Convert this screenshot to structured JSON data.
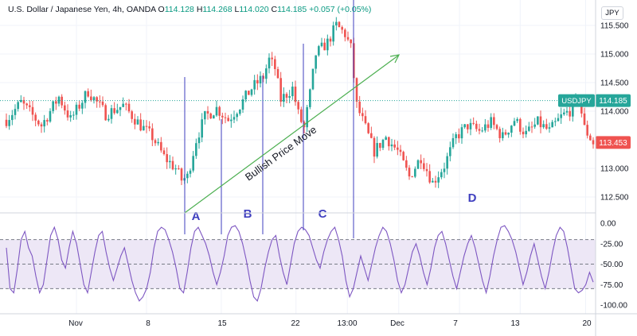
{
  "header": {
    "symbol": "U.S. Dollar / Japanese Yen, 4h, OANDA",
    "o_label": "O",
    "o_value": "114.128",
    "h_label": "H",
    "h_value": "114.268",
    "l_label": "L",
    "l_value": "114.020",
    "c_label": "C",
    "c_value": "114.185",
    "change": "+0.057 (+0.05%)"
  },
  "currency_button": "JPY",
  "colors": {
    "up": "#26a69a",
    "down": "#ef5350",
    "indicator": "#7e57c2",
    "band": "#ede7f6",
    "annotation": "#3f3fbf",
    "arrow": "#4caf50",
    "badge_green": "#26a69a",
    "badge_red": "#ef5350"
  },
  "chart_data": [
    {
      "type": "candlestick",
      "symbol": "USDJPY",
      "y_ticks": [
        "115.500",
        "115.000",
        "114.500",
        "114.000",
        "113.500",
        "113.000",
        "112.500"
      ],
      "ylim": [
        112.25,
        115.75
      ],
      "x_ticks": [
        "Nov",
        "8",
        "15",
        "22",
        "13:00",
        "Dec",
        "7",
        "13",
        "20"
      ],
      "last_price_label": "USDJPY",
      "last_price": "114.185",
      "alt_price": "113.453",
      "grid": true,
      "annotations": [
        {
          "text": "Bullish Price Move",
          "kind": "arrow"
        },
        {
          "text": "A"
        },
        {
          "text": "B"
        },
        {
          "text": "C"
        },
        {
          "text": "D"
        }
      ],
      "price_path": [
        [
          0,
          113.85
        ],
        [
          5,
          114.15
        ],
        [
          12,
          113.75
        ],
        [
          18,
          114.25
        ],
        [
          22,
          113.85
        ],
        [
          28,
          114.35
        ],
        [
          34,
          113.95
        ],
        [
          40,
          114.1
        ],
        [
          46,
          113.75
        ],
        [
          50,
          113.55
        ],
        [
          54,
          113.2
        ],
        [
          58,
          113.0
        ],
        [
          60,
          112.8
        ],
        [
          62,
          112.85
        ],
        [
          65,
          113.5
        ],
        [
          68,
          113.9
        ],
        [
          72,
          114.05
        ],
        [
          76,
          113.85
        ],
        [
          80,
          114.1
        ],
        [
          84,
          114.4
        ],
        [
          88,
          114.6
        ],
        [
          90,
          114.9
        ],
        [
          92,
          114.75
        ],
        [
          94,
          114.2
        ],
        [
          98,
          114.4
        ],
        [
          100,
          113.95
        ],
        [
          102,
          113.7
        ],
        [
          104,
          114.3
        ],
        [
          106,
          115.0
        ],
        [
          110,
          115.2
        ],
        [
          113,
          115.5
        ],
        [
          116,
          115.35
        ],
        [
          118,
          115.1
        ],
        [
          120,
          114.1
        ],
        [
          123,
          113.7
        ],
        [
          126,
          113.3
        ],
        [
          130,
          113.55
        ],
        [
          134,
          113.3
        ],
        [
          138,
          112.85
        ],
        [
          142,
          113.2
        ],
        [
          146,
          112.75
        ],
        [
          150,
          113.05
        ],
        [
          154,
          113.55
        ],
        [
          158,
          113.75
        ],
        [
          162,
          113.65
        ],
        [
          166,
          113.8
        ],
        [
          170,
          113.55
        ],
        [
          174,
          113.85
        ],
        [
          178,
          113.6
        ],
        [
          182,
          113.8
        ],
        [
          186,
          113.65
        ],
        [
          190,
          113.9
        ],
        [
          194,
          114.05
        ],
        [
          196,
          114.25
        ],
        [
          198,
          113.7
        ],
        [
          201,
          113.45
        ]
      ]
    },
    {
      "type": "line",
      "name": "oscillator",
      "y_ticks": [
        "0.00",
        "-25.00",
        "-50.00",
        "-75.00",
        "-100.00"
      ],
      "ylim": [
        -105,
        5
      ],
      "levels": [
        -20,
        -50,
        -80
      ],
      "values": [
        -30,
        -80,
        -85,
        -55,
        -20,
        -10,
        -30,
        -40,
        -65,
        -85,
        -75,
        -45,
        -15,
        -5,
        -20,
        -45,
        -55,
        -30,
        -10,
        -25,
        -50,
        -75,
        -85,
        -60,
        -35,
        -15,
        -10,
        -35,
        -55,
        -70,
        -55,
        -40,
        -30,
        -50,
        -70,
        -85,
        -95,
        -90,
        -80,
        -60,
        -30,
        -10,
        -5,
        -8,
        -20,
        -35,
        -55,
        -80,
        -85,
        -60,
        -30,
        -10,
        -5,
        -15,
        -25,
        -40,
        -60,
        -75,
        -60,
        -40,
        -15,
        -5,
        -3,
        -10,
        -25,
        -45,
        -70,
        -90,
        -95,
        -80,
        -55,
        -35,
        -20,
        -15,
        -40,
        -60,
        -75,
        -50,
        -25,
        -10,
        -5,
        -8,
        -15,
        -30,
        -45,
        -55,
        -35,
        -20,
        -10,
        -5,
        -20,
        -40,
        -70,
        -90,
        -80,
        -60,
        -40,
        -55,
        -70,
        -50,
        -30,
        -15,
        -5,
        -10,
        -25,
        -45,
        -70,
        -85,
        -75,
        -55,
        -35,
        -25,
        -40,
        -60,
        -75,
        -55,
        -30,
        -15,
        -10,
        -25,
        -45,
        -65,
        -80,
        -60,
        -40,
        -25,
        -15,
        -30,
        -50,
        -70,
        -85,
        -65,
        -40,
        -20,
        -5,
        -3,
        -10,
        -20,
        -35,
        -55,
        -75,
        -60,
        -40,
        -25,
        -45,
        -65,
        -80,
        -60,
        -35,
        -15,
        -5,
        -10,
        -30,
        -55,
        -80,
        -85,
        -82,
        -75,
        -60,
        -72
      ]
    }
  ]
}
